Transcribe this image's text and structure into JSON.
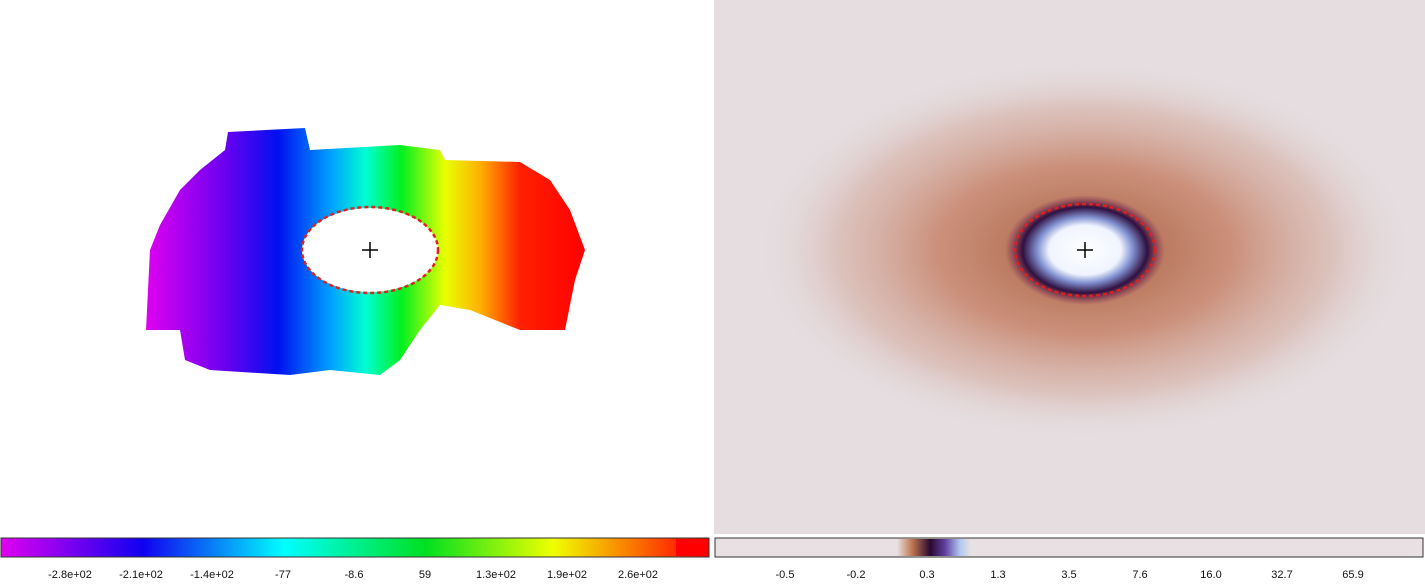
{
  "panels": [
    {
      "colorbar": {
        "labels": [
          "-2.8e+02",
          "-2.1e+02",
          "-1.4e+02",
          "-77",
          "-8.6",
          "59",
          "1.3e+02",
          "1.9e+02",
          "2.6e+02"
        ]
      }
    },
    {
      "colorbar": {
        "labels": [
          "-0.5",
          "-0.2",
          "0.3",
          "1.3",
          "3.5",
          "7.6",
          "16.0",
          "32.7",
          "65.9"
        ]
      }
    }
  ]
}
